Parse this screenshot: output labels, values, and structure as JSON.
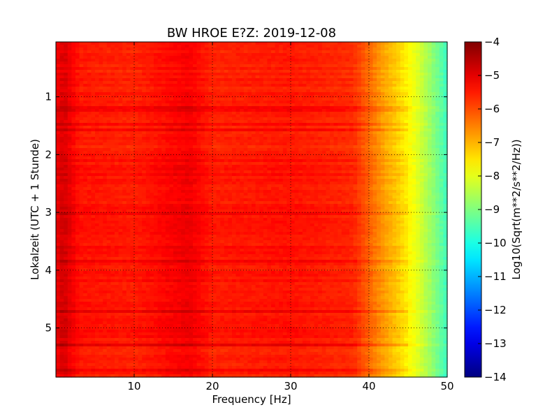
{
  "chart_data": {
    "type": "heatmap",
    "title": "BW HROE E?Z: 2019-12-08",
    "xlabel": "Frequency [Hz]",
    "ylabel": "Lokalzeit (UTC + 1 Stunde)",
    "xlim": [
      0,
      50
    ],
    "ylim": [
      5.85,
      0.05
    ],
    "x_ticks": [
      10,
      20,
      30,
      40,
      50
    ],
    "x_tick_labels": [
      "10",
      "20",
      "30",
      "40",
      "50"
    ],
    "y_ticks": [
      1,
      2,
      3,
      4,
      5
    ],
    "y_tick_labels": [
      "1",
      "2",
      "3",
      "4",
      "5"
    ],
    "grid": true,
    "colorbar": {
      "label": "Log10(Sqrt(m**2/s**2/Hz))",
      "range": [
        -14,
        -4
      ],
      "ticks": [
        -4,
        -5,
        -6,
        -7,
        -8,
        -9,
        -10,
        -11,
        -12,
        -13,
        -14
      ],
      "tick_labels": [
        "−4",
        "−5",
        "−6",
        "−7",
        "−8",
        "−9",
        "−10",
        "−11",
        "−12",
        "−13",
        "−14"
      ],
      "colormap": "jet"
    },
    "spectrum_profile": {
      "frequency_hz": [
        0,
        1,
        3,
        10,
        17,
        20,
        30,
        38,
        40,
        42,
        44,
        46,
        48,
        50
      ],
      "log10_amplitude": [
        -5.2,
        -4.9,
        -5.5,
        -5.6,
        -5.2,
        -5.6,
        -5.5,
        -5.7,
        -6.3,
        -6.9,
        -7.4,
        -8.0,
        -8.8,
        -9.7
      ]
    }
  }
}
